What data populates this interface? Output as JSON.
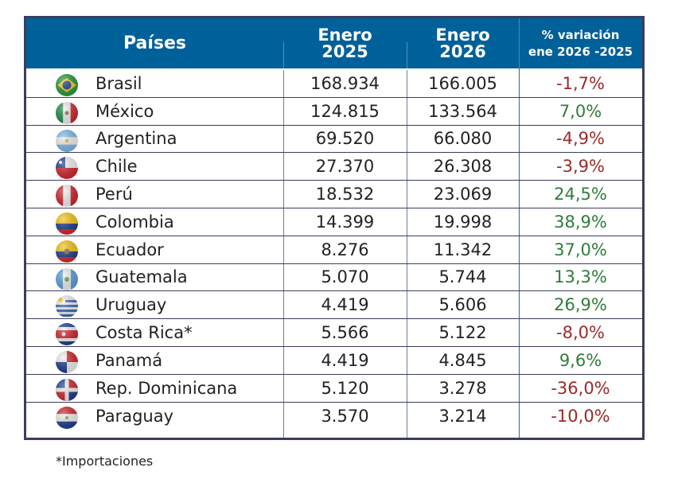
{
  "headers": {
    "country": "Países",
    "jan2025_line1": "Enero",
    "jan2025_line2": "2025",
    "jan2026_line1": "Enero",
    "jan2026_line2": "2026",
    "var_line1": "% variación",
    "var_line2": "ene 2026 -2025"
  },
  "colors": {
    "header_bg": "#00609a",
    "border": "#3b3d5e",
    "negative": "#9b2a2a",
    "positive": "#2e7d3a"
  },
  "rows": [
    {
      "country": "Brasil",
      "flag": "brazil-flag",
      "y2025": "168.934",
      "y2026": "166.005",
      "variation": "-1,7%",
      "trend": "negative"
    },
    {
      "country": "México",
      "flag": "mexico-flag",
      "y2025": "124.815",
      "y2026": "133.564",
      "variation": "7,0%",
      "trend": "positive"
    },
    {
      "country": "Argentina",
      "flag": "argentina-flag",
      "y2025": "69.520",
      "y2026": "66.080",
      "variation": "-4,9%",
      "trend": "negative"
    },
    {
      "country": "Chile",
      "flag": "chile-flag",
      "y2025": "27.370",
      "y2026": "26.308",
      "variation": "-3,9%",
      "trend": "negative"
    },
    {
      "country": "Perú",
      "flag": "peru-flag",
      "y2025": "18.532",
      "y2026": "23.069",
      "variation": "24,5%",
      "trend": "positive"
    },
    {
      "country": "Colombia",
      "flag": "colombia-flag",
      "y2025": "14.399",
      "y2026": "19.998",
      "variation": "38,9%",
      "trend": "positive"
    },
    {
      "country": "Ecuador",
      "flag": "ecuador-flag",
      "y2025": "8.276",
      "y2026": "11.342",
      "variation": "37,0%",
      "trend": "positive"
    },
    {
      "country": "Guatemala",
      "flag": "guatemala-flag",
      "y2025": "5.070",
      "y2026": "5.744",
      "variation": "13,3%",
      "trend": "positive"
    },
    {
      "country": "Uruguay",
      "flag": "uruguay-flag",
      "y2025": "4.419",
      "y2026": "5.606",
      "variation": "26,9%",
      "trend": "positive"
    },
    {
      "country": "Costa Rica*",
      "flag": "costa-rica-flag",
      "y2025": "5.566",
      "y2026": "5.122",
      "variation": "-8,0%",
      "trend": "negative"
    },
    {
      "country": "Panamá",
      "flag": "panama-flag",
      "y2025": "4.419",
      "y2026": "4.845",
      "variation": "9,6%",
      "trend": "positive"
    },
    {
      "country": "Rep. Dominicana",
      "flag": "dominican-republic-flag",
      "y2025": "5.120",
      "y2026": "3.278",
      "variation": "-36,0%",
      "trend": "negative"
    },
    {
      "country": "Paraguay",
      "flag": "paraguay-flag",
      "y2025": "3.570",
      "y2026": "3.214",
      "variation": "-10,0%",
      "trend": "negative"
    }
  ],
  "footnote": "*Importaciones"
}
